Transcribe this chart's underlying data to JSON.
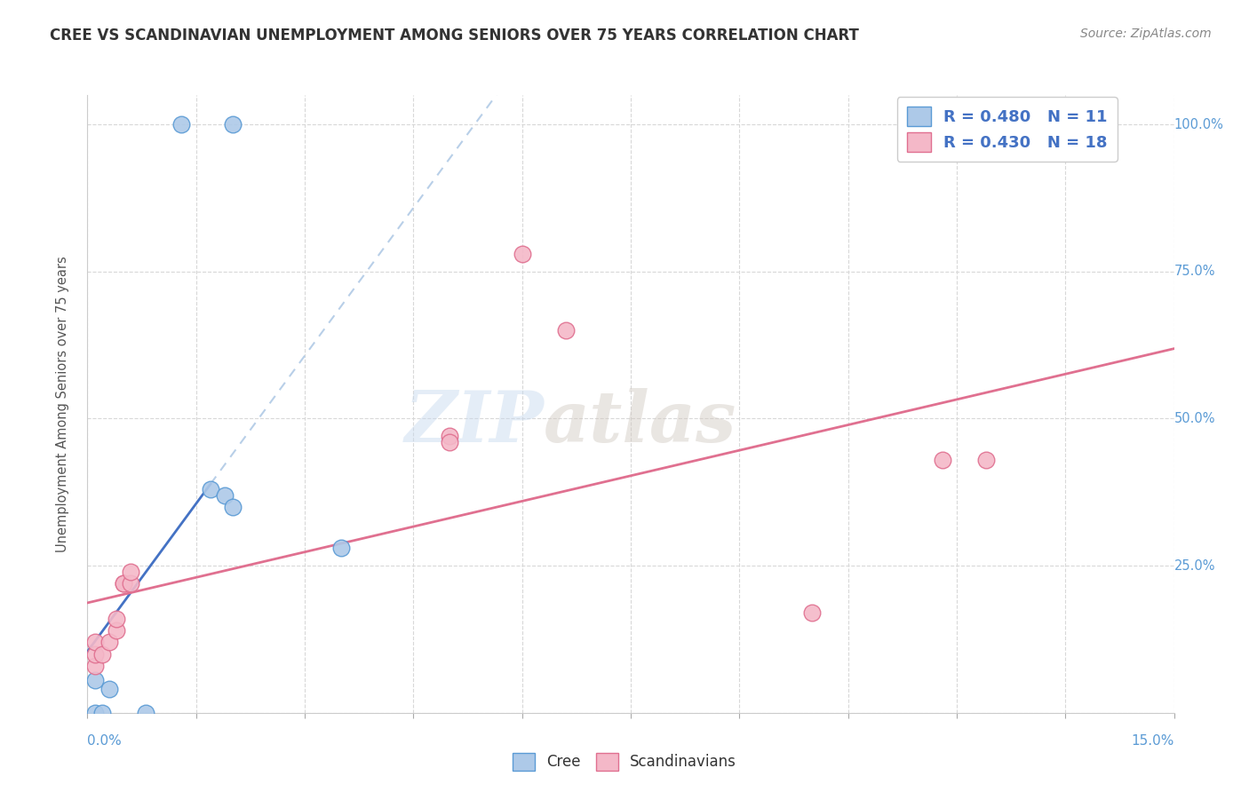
{
  "title": "CREE VS SCANDINAVIAN UNEMPLOYMENT AMONG SENIORS OVER 75 YEARS CORRELATION CHART",
  "source": "Source: ZipAtlas.com",
  "ylabel": "Unemployment Among Seniors over 75 years",
  "xlim": [
    0,
    0.15
  ],
  "ylim": [
    0,
    1.05
  ],
  "cree_color": "#adc9e8",
  "cree_edge_color": "#5b9bd5",
  "scand_color": "#f4b8c8",
  "scand_edge_color": "#e07090",
  "trend_cree_color": "#4472c4",
  "trend_scand_color": "#e07090",
  "trend_cree_ext_color": "#b8cfe8",
  "legend_text_color": "#4472c4",
  "right_axis_color": "#5b9bd5",
  "cree_R": "0.480",
  "cree_N": "11",
  "scand_R": "0.430",
  "scand_N": "18",
  "cree_points": [
    [
      0.001,
      0.0
    ],
    [
      0.001,
      0.055
    ],
    [
      0.002,
      0.0
    ],
    [
      0.003,
      0.04
    ],
    [
      0.008,
      0.0
    ],
    [
      0.013,
      1.0
    ],
    [
      0.02,
      1.0
    ],
    [
      0.017,
      0.38
    ],
    [
      0.019,
      0.37
    ],
    [
      0.02,
      0.35
    ],
    [
      0.035,
      0.28
    ]
  ],
  "scand_points": [
    [
      0.001,
      0.08
    ],
    [
      0.001,
      0.1
    ],
    [
      0.001,
      0.12
    ],
    [
      0.002,
      0.1
    ],
    [
      0.003,
      0.12
    ],
    [
      0.004,
      0.14
    ],
    [
      0.004,
      0.16
    ],
    [
      0.005,
      0.22
    ],
    [
      0.005,
      0.22
    ],
    [
      0.006,
      0.22
    ],
    [
      0.006,
      0.24
    ],
    [
      0.05,
      0.47
    ],
    [
      0.05,
      0.46
    ],
    [
      0.06,
      0.78
    ],
    [
      0.066,
      0.65
    ],
    [
      0.1,
      0.17
    ],
    [
      0.118,
      0.43
    ],
    [
      0.124,
      0.43
    ]
  ],
  "watermark_zip": "ZIP",
  "watermark_atlas": "atlas",
  "background_color": "#ffffff",
  "grid_color": "#d8d8d8",
  "ytick_values": [
    0.0,
    0.25,
    0.5,
    0.75,
    1.0
  ],
  "ytick_labels": [
    "",
    "25.0%",
    "50.0%",
    "75.0%",
    "100.0%"
  ],
  "xtick_values": [
    0.0,
    0.015,
    0.03,
    0.045,
    0.06,
    0.075,
    0.09,
    0.105,
    0.12,
    0.135,
    0.15
  ],
  "marker_size": 180
}
